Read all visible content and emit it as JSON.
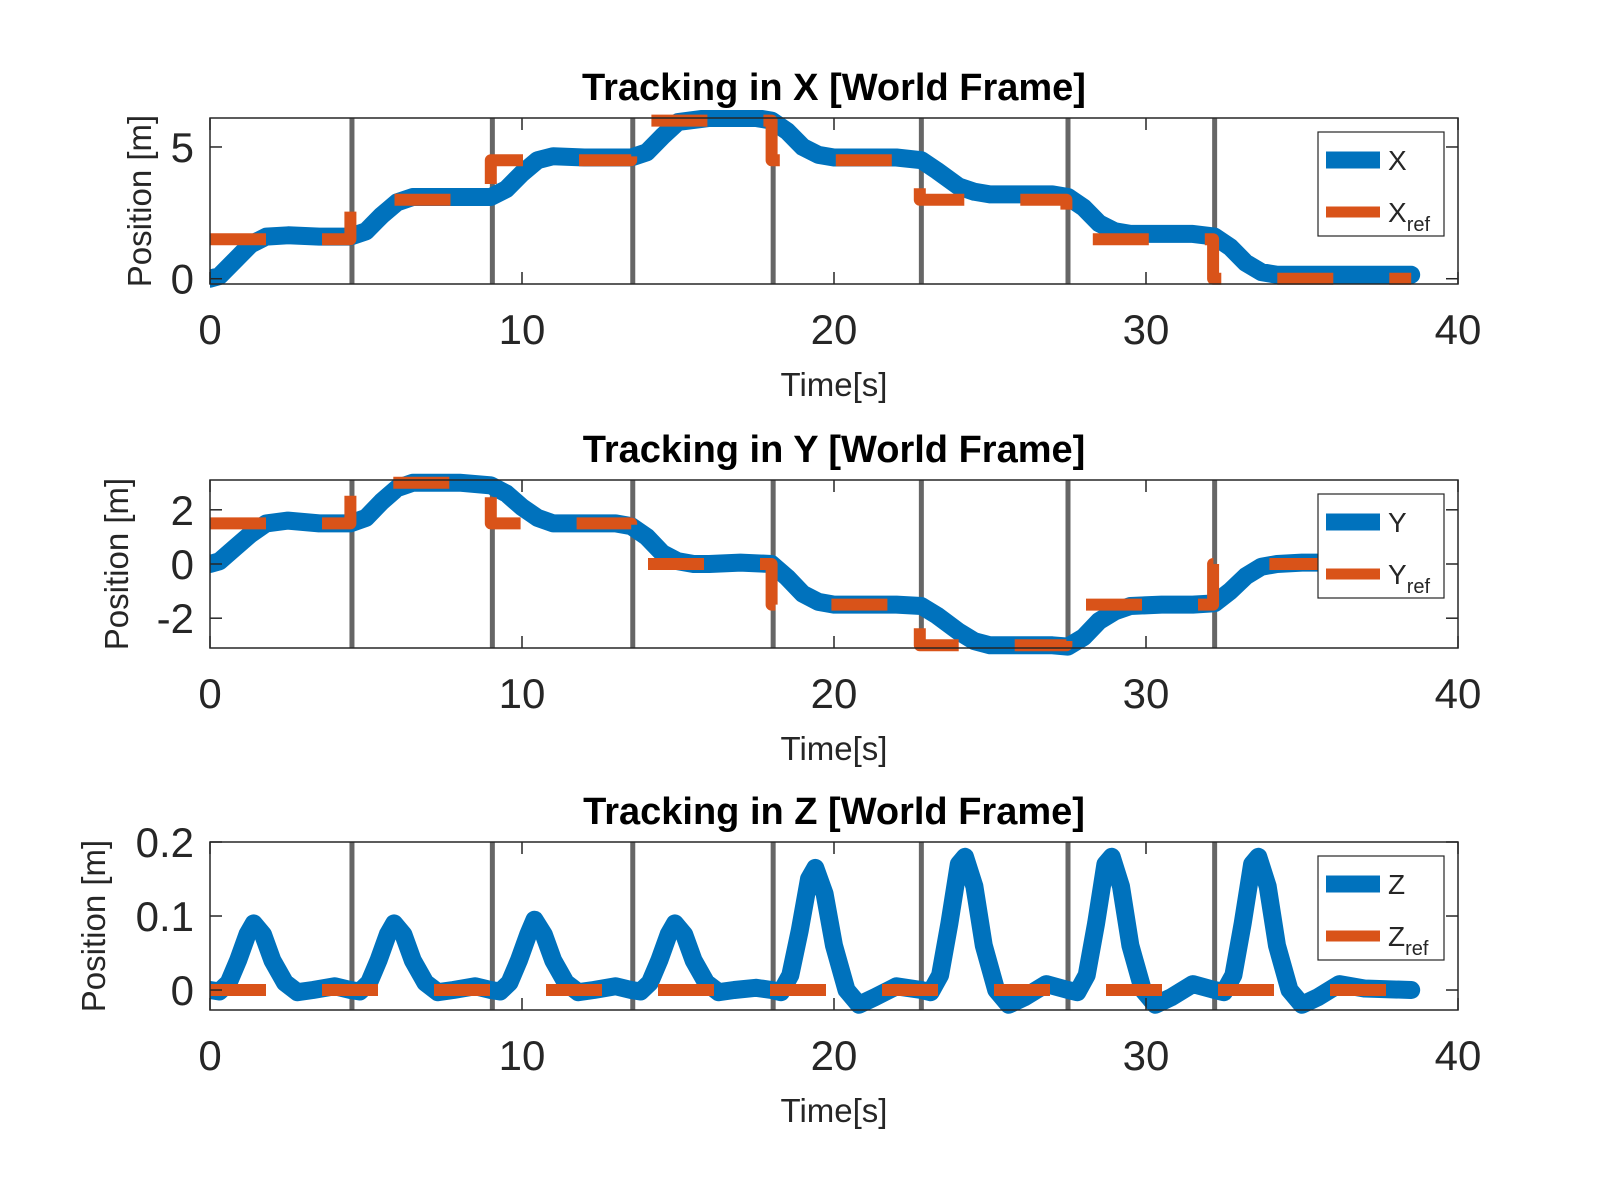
{
  "chart_data": [
    {
      "type": "line",
      "title": "Tracking in X [World Frame]",
      "xlabel": "Time[s]",
      "ylabel": "Position [m]",
      "xlim": [
        0,
        40
      ],
      "ylim": [
        -0.2,
        6.1
      ],
      "xticks": [
        "0",
        "10",
        "20",
        "30",
        "40"
      ],
      "yticks": [
        {
          "v": 0,
          "label": "0"
        },
        {
          "v": 5,
          "label": "5"
        }
      ],
      "legend": {
        "position": "top-right",
        "entries": [
          {
            "main": "X",
            "sub": ""
          },
          {
            "main": "X",
            "sub": "ref"
          }
        ]
      },
      "vlines": [
        4.55,
        9.05,
        13.55,
        18.05,
        22.8,
        27.5,
        32.2
      ],
      "series": [
        {
          "name": "X",
          "color": "#0072BD",
          "style": "solid",
          "x": [
            0,
            0.3,
            0.8,
            1.3,
            1.8,
            2.5,
            3.5,
            4.5,
            5.0,
            5.5,
            6.0,
            6.5,
            7.5,
            8.5,
            9.0,
            9.5,
            10.0,
            10.5,
            11.0,
            12.0,
            13.0,
            13.5,
            14.0,
            14.5,
            15.0,
            16.0,
            17.0,
            17.5,
            18.0,
            18.5,
            19.0,
            19.5,
            20.0,
            21.0,
            22.0,
            22.8,
            23.3,
            24.0,
            24.5,
            25.0,
            26.0,
            27.0,
            27.5,
            28.0,
            28.5,
            29.0,
            29.5,
            30.5,
            31.5,
            32.2,
            32.7,
            33.2,
            33.7,
            34.2,
            35.0,
            36.5,
            38.5
          ],
          "y": [
            0,
            0.1,
            0.7,
            1.3,
            1.6,
            1.65,
            1.6,
            1.6,
            1.8,
            2.4,
            2.9,
            3.1,
            3.1,
            3.1,
            3.1,
            3.4,
            4.0,
            4.5,
            4.65,
            4.6,
            4.6,
            4.6,
            4.8,
            5.4,
            5.95,
            6.1,
            6.1,
            6.1,
            6.0,
            5.6,
            5.0,
            4.7,
            4.6,
            4.6,
            4.6,
            4.5,
            4.1,
            3.5,
            3.3,
            3.2,
            3.2,
            3.2,
            3.1,
            2.7,
            2.1,
            1.8,
            1.7,
            1.7,
            1.7,
            1.6,
            1.2,
            0.6,
            0.25,
            0.15,
            0.15,
            0.15,
            0.15
          ]
        },
        {
          "name": "X",
          "sub": "ref",
          "color": "#D95319",
          "style": "dashed",
          "x": [
            0,
            4.5,
            4.5,
            9.0,
            9.0,
            13.5,
            13.5,
            18.0,
            18.0,
            22.75,
            22.75,
            27.45,
            27.45,
            32.15,
            32.15,
            38.5
          ],
          "y": [
            1.5,
            1.5,
            3.0,
            3.0,
            4.5,
            4.5,
            6.0,
            6.0,
            4.5,
            4.5,
            3.0,
            3.0,
            1.5,
            1.5,
            0.0,
            0.0
          ]
        }
      ]
    },
    {
      "type": "line",
      "title": "Tracking in Y [World Frame]",
      "xlabel": "Time[s]",
      "ylabel": "Position [m]",
      "xlim": [
        0,
        40
      ],
      "ylim": [
        -3.1,
        3.1
      ],
      "xticks": [
        "0",
        "10",
        "20",
        "30",
        "40"
      ],
      "yticks": [
        {
          "v": -2,
          "label": "-2"
        },
        {
          "v": 0,
          "label": "0"
        },
        {
          "v": 2,
          "label": "2"
        }
      ],
      "legend": {
        "position": "top-right",
        "entries": [
          {
            "main": "Y",
            "sub": ""
          },
          {
            "main": "Y",
            "sub": "ref"
          }
        ]
      },
      "vlines": [
        4.55,
        9.05,
        13.55,
        18.05,
        22.8,
        27.5,
        32.2
      ],
      "series": [
        {
          "name": "Y",
          "color": "#0072BD",
          "style": "solid",
          "x": [
            0,
            0.3,
            0.8,
            1.3,
            1.8,
            2.5,
            3.5,
            4.5,
            5.0,
            5.5,
            6.0,
            6.5,
            7.0,
            8.0,
            9.0,
            9.5,
            10.0,
            10.5,
            11.0,
            12.0,
            13.0,
            13.5,
            14.0,
            14.5,
            15.0,
            15.5,
            16.0,
            17.0,
            18.0,
            18.5,
            19.0,
            19.5,
            20.0,
            21.0,
            22.0,
            22.8,
            23.3,
            24.0,
            24.5,
            25.0,
            26.0,
            27.0,
            27.5,
            28.0,
            28.5,
            29.0,
            29.5,
            30.5,
            31.5,
            32.2,
            32.7,
            33.2,
            33.7,
            34.2,
            35.0,
            36.5,
            38.5
          ],
          "y": [
            0,
            0.1,
            0.6,
            1.1,
            1.5,
            1.6,
            1.5,
            1.5,
            1.7,
            2.3,
            2.8,
            3.0,
            3.0,
            3.0,
            2.9,
            2.6,
            2.1,
            1.7,
            1.5,
            1.5,
            1.5,
            1.4,
            1.0,
            0.4,
            0.1,
            0.0,
            0.0,
            0.05,
            0.0,
            -0.5,
            -1.1,
            -1.4,
            -1.5,
            -1.5,
            -1.5,
            -1.55,
            -1.9,
            -2.5,
            -2.85,
            -3.0,
            -3.0,
            -3.0,
            -3.05,
            -2.7,
            -2.1,
            -1.75,
            -1.55,
            -1.5,
            -1.5,
            -1.45,
            -1.0,
            -0.45,
            -0.1,
            0.0,
            0.05,
            0.05,
            0.05
          ]
        },
        {
          "name": "Y",
          "sub": "ref",
          "color": "#D95319",
          "style": "dashed",
          "x": [
            0,
            4.5,
            4.5,
            9.0,
            9.0,
            13.5,
            13.5,
            18.0,
            18.0,
            22.75,
            22.75,
            27.45,
            27.45,
            32.15,
            32.15,
            38.5
          ],
          "y": [
            1.5,
            1.5,
            3.0,
            3.0,
            1.5,
            1.5,
            0.0,
            0.0,
            -1.5,
            -1.5,
            -3.0,
            -3.0,
            -1.5,
            -1.5,
            0.0,
            0.0
          ]
        }
      ]
    },
    {
      "type": "line",
      "title": "Tracking in Z [World Frame]",
      "xlabel": "Time[s]",
      "ylabel": "Position [m]",
      "xlim": [
        0,
        40
      ],
      "ylim": [
        -0.027,
        0.2
      ],
      "xticks": [
        "0",
        "10",
        "20",
        "30",
        "40"
      ],
      "yticks": [
        {
          "v": 0,
          "label": "0"
        },
        {
          "v": 0.1,
          "label": "0.1"
        },
        {
          "v": 0.2,
          "label": "0.2"
        }
      ],
      "legend": {
        "position": "top-right",
        "entries": [
          {
            "main": "Z",
            "sub": ""
          },
          {
            "main": "Z",
            "sub": "ref"
          }
        ]
      },
      "vlines": [
        4.55,
        9.05,
        13.55,
        18.05,
        22.8,
        27.5,
        32.2
      ],
      "series": [
        {
          "name": "Z",
          "color": "#0072BD",
          "style": "solid",
          "x": [
            0,
            0.3,
            0.6,
            0.9,
            1.2,
            1.4,
            1.7,
            2.0,
            2.4,
            2.8,
            3.3,
            4.0,
            4.5,
            4.8,
            5.1,
            5.4,
            5.7,
            5.9,
            6.2,
            6.5,
            6.9,
            7.3,
            7.8,
            8.5,
            9.0,
            9.3,
            9.6,
            9.9,
            10.2,
            10.4,
            10.7,
            11.0,
            11.4,
            11.8,
            12.3,
            13.0,
            13.5,
            13.8,
            14.1,
            14.4,
            14.7,
            14.9,
            15.2,
            15.5,
            15.9,
            16.3,
            16.8,
            17.5,
            18.0,
            18.3,
            18.6,
            18.9,
            19.2,
            19.4,
            19.7,
            20.0,
            20.4,
            20.8,
            21.3,
            22.0,
            22.8,
            23.1,
            23.4,
            23.7,
            24.0,
            24.2,
            24.5,
            24.8,
            25.2,
            25.6,
            26.1,
            26.8,
            27.5,
            27.8,
            28.1,
            28.4,
            28.7,
            28.9,
            29.2,
            29.5,
            29.9,
            30.3,
            30.8,
            31.5,
            32.2,
            32.5,
            32.8,
            33.1,
            33.4,
            33.6,
            33.9,
            34.2,
            34.6,
            35.0,
            35.5,
            36.2,
            37.0,
            38.5
          ],
          "y": [
            0.0,
            -0.002,
            0.01,
            0.04,
            0.075,
            0.09,
            0.075,
            0.04,
            0.01,
            -0.003,
            0.0,
            0.005,
            0.0,
            -0.002,
            0.01,
            0.04,
            0.075,
            0.09,
            0.075,
            0.04,
            0.01,
            -0.003,
            0.0,
            0.005,
            0.0,
            -0.002,
            0.01,
            0.04,
            0.075,
            0.095,
            0.075,
            0.04,
            0.01,
            -0.003,
            0.0,
            0.005,
            0.0,
            -0.002,
            0.01,
            0.04,
            0.075,
            0.09,
            0.075,
            0.04,
            0.01,
            -0.003,
            0.0,
            0.003,
            0.0,
            -0.003,
            0.02,
            0.08,
            0.15,
            0.165,
            0.13,
            0.06,
            0.0,
            -0.02,
            -0.01,
            0.005,
            0.0,
            -0.003,
            0.02,
            0.09,
            0.17,
            0.18,
            0.14,
            0.06,
            0.0,
            -0.02,
            -0.01,
            0.008,
            0.0,
            -0.003,
            0.02,
            0.09,
            0.17,
            0.18,
            0.14,
            0.06,
            0.0,
            -0.02,
            -0.01,
            0.008,
            0.0,
            -0.003,
            0.02,
            0.09,
            0.17,
            0.18,
            0.14,
            0.06,
            0.0,
            -0.02,
            -0.01,
            0.008,
            0.002,
            0.0
          ]
        },
        {
          "name": "Z",
          "sub": "ref",
          "color": "#D95319",
          "style": "dashed",
          "x": [
            0,
            38.5
          ],
          "y": [
            0,
            0
          ]
        }
      ]
    }
  ]
}
